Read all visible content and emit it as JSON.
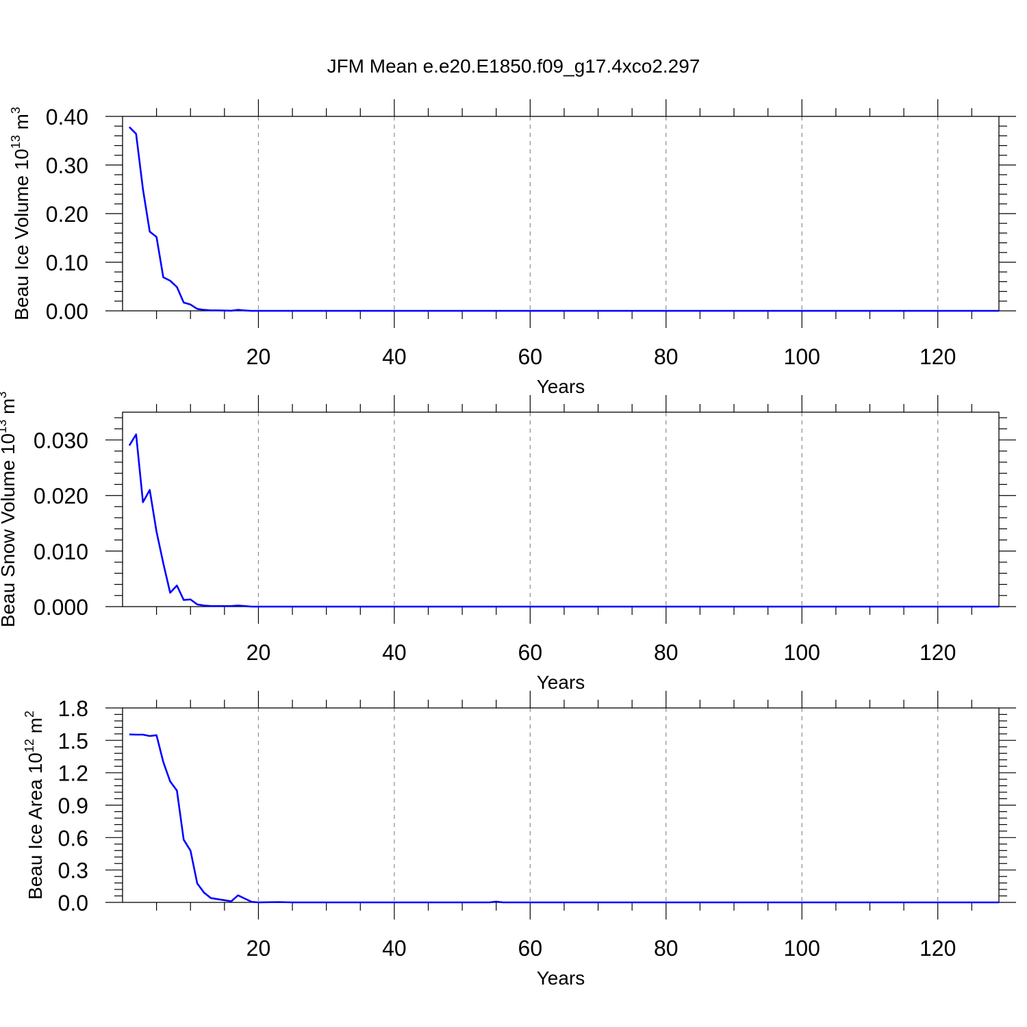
{
  "title": "JFM Mean e.e20.E1850.f09_g17.4xco2.297",
  "line_color": "#0000ff",
  "chart_data": [
    {
      "type": "line",
      "xlabel": "Years",
      "ylabel": "Beau Ice Volume 10",
      "ylabel_exp": "13",
      "ylabel_unit": " m",
      "ylabel_unit_exp": "3",
      "xlim": [
        0,
        129
      ],
      "ylim": [
        0,
        0.4
      ],
      "xticks": [
        20,
        40,
        60,
        80,
        100,
        120
      ],
      "xtick_labels": [
        "20",
        "40",
        "60",
        "80",
        "100",
        "120"
      ],
      "yticks": [
        0,
        0.1,
        0.2,
        0.3,
        0.4
      ],
      "ytick_labels": [
        "0.00",
        "0.10",
        "0.20",
        "0.30",
        "0.40"
      ],
      "grid": "vertical-dashed",
      "series": [
        {
          "values": [
            [
              1,
              0.378
            ],
            [
              2,
              0.364
            ],
            [
              3,
              0.25
            ],
            [
              4,
              0.163
            ],
            [
              5,
              0.152
            ],
            [
              6,
              0.069
            ],
            [
              7,
              0.062
            ],
            [
              8,
              0.049
            ],
            [
              9,
              0.017
            ],
            [
              10,
              0.013
            ],
            [
              11,
              0.004
            ],
            [
              12,
              0.002
            ],
            [
              13,
              0.001
            ],
            [
              14,
              0.001
            ],
            [
              15,
              0.0005
            ],
            [
              16,
              0.0003
            ],
            [
              17,
              0.002
            ],
            [
              18,
              0.0008
            ],
            [
              19,
              0
            ],
            [
              20,
              0
            ],
            [
              129,
              0
            ]
          ]
        }
      ]
    },
    {
      "type": "line",
      "xlabel": "Years",
      "ylabel": "Beau Snow Volume 10",
      "ylabel_exp": "13",
      "ylabel_unit": " m",
      "ylabel_unit_exp": "3",
      "xlim": [
        0,
        129
      ],
      "ylim": [
        0,
        0.035
      ],
      "xticks": [
        20,
        40,
        60,
        80,
        100,
        120
      ],
      "xtick_labels": [
        "20",
        "40",
        "60",
        "80",
        "100",
        "120"
      ],
      "yticks": [
        0,
        0.01,
        0.02,
        0.03
      ],
      "ytick_labels": [
        "0.000",
        "0.010",
        "0.020",
        "0.030"
      ],
      "grid": "vertical-dashed",
      "series": [
        {
          "values": [
            [
              1,
              0.029
            ],
            [
              2,
              0.031
            ],
            [
              3,
              0.0188
            ],
            [
              4,
              0.021
            ],
            [
              5,
              0.0135
            ],
            [
              6,
              0.0078
            ],
            [
              7,
              0.0025
            ],
            [
              8,
              0.0038
            ],
            [
              9,
              0.0012
            ],
            [
              10,
              0.0013
            ],
            [
              11,
              0.0004
            ],
            [
              12,
              0.0002
            ],
            [
              13,
              0.0001
            ],
            [
              14,
              0.0001
            ],
            [
              15,
              0.0001
            ],
            [
              16,
              0.0001
            ],
            [
              17,
              0.0002
            ],
            [
              18,
              0.0001
            ],
            [
              19,
              0
            ],
            [
              129,
              0
            ]
          ]
        }
      ]
    },
    {
      "type": "line",
      "xlabel": "Years",
      "ylabel": "Beau Ice Area 10",
      "ylabel_exp": "12",
      "ylabel_unit": " m",
      "ylabel_unit_exp": "2",
      "xlim": [
        0,
        129
      ],
      "ylim": [
        0,
        1.8
      ],
      "xticks": [
        20,
        40,
        60,
        80,
        100,
        120
      ],
      "xtick_labels": [
        "20",
        "40",
        "60",
        "80",
        "100",
        "120"
      ],
      "yticks": [
        0,
        0.3,
        0.6,
        0.9,
        1.2,
        1.5,
        1.8
      ],
      "ytick_labels": [
        "0.0",
        "0.3",
        "0.6",
        "0.9",
        "1.2",
        "1.5",
        "1.8"
      ],
      "grid": "vertical-dashed",
      "series": [
        {
          "values": [
            [
              1,
              1.555
            ],
            [
              2,
              1.553
            ],
            [
              3,
              1.553
            ],
            [
              4,
              1.54
            ],
            [
              5,
              1.548
            ],
            [
              6,
              1.3
            ],
            [
              7,
              1.12
            ],
            [
              8,
              1.035
            ],
            [
              9,
              0.58
            ],
            [
              10,
              0.48
            ],
            [
              11,
              0.175
            ],
            [
              12,
              0.09
            ],
            [
              13,
              0.04
            ],
            [
              14,
              0.03
            ],
            [
              15,
              0.02
            ],
            [
              16,
              0.01
            ],
            [
              17,
              0.065
            ],
            [
              18,
              0.035
            ],
            [
              19,
              0.005
            ],
            [
              20,
              0
            ],
            [
              23,
              0.003
            ],
            [
              25,
              0
            ],
            [
              54,
              0
            ],
            [
              55,
              0.007
            ],
            [
              56,
              0
            ],
            [
              129,
              0
            ]
          ]
        }
      ]
    }
  ]
}
